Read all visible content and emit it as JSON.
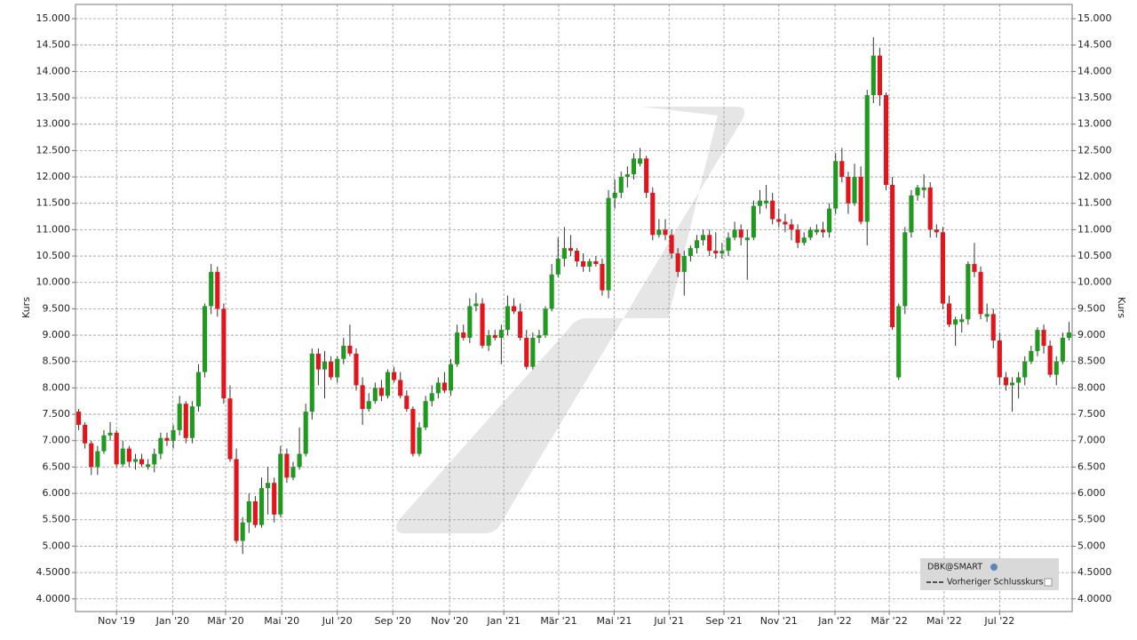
{
  "chart_data": {
    "type": "candlestick",
    "ylabel": "Kurs",
    "y2label": "Kurs",
    "up_color": "#1f9a1f",
    "down_color": "#e3141b",
    "grid": true,
    "legend": {
      "title": "DBK@SMART",
      "entries": [
        "Vorheriger Schlusskurs"
      ]
    },
    "xlim": [
      -0.5,
      157.5
    ],
    "ylim": [
      3.76,
      15.27
    ],
    "xticks": [
      {
        "value": 6.0,
        "label": "Nov '19"
      },
      {
        "value": 14.9,
        "label": "Jan '20"
      },
      {
        "value": 23.3,
        "label": "Mär '20"
      },
      {
        "value": 32.2,
        "label": "Mai '20"
      },
      {
        "value": 41.0,
        "label": "Jul '20"
      },
      {
        "value": 49.8,
        "label": "Sep '20"
      },
      {
        "value": 58.8,
        "label": "Nov '20"
      },
      {
        "value": 67.4,
        "label": "Jan '21"
      },
      {
        "value": 76.1,
        "label": "Mär '21"
      },
      {
        "value": 84.9,
        "label": "Mai '21"
      },
      {
        "value": 93.6,
        "label": "Jul '21"
      },
      {
        "value": 102.3,
        "label": "Sep '21"
      },
      {
        "value": 111.0,
        "label": "Nov '21"
      },
      {
        "value": 119.9,
        "label": "Jan '22"
      },
      {
        "value": 128.5,
        "label": "Mär '22"
      },
      {
        "value": 137.2,
        "label": "Mai '22"
      },
      {
        "value": 146.0,
        "label": "Jul '22"
      }
    ],
    "yticks": [
      {
        "value": 4,
        "label": "4.0000"
      },
      {
        "value": 4.5,
        "label": "4.5000"
      },
      {
        "value": 5,
        "label": "5.000"
      },
      {
        "value": 5.5,
        "label": "5.500"
      },
      {
        "value": 6,
        "label": "6.000"
      },
      {
        "value": 6.5,
        "label": "6.500"
      },
      {
        "value": 7,
        "label": "7.000"
      },
      {
        "value": 7.5,
        "label": "7.500"
      },
      {
        "value": 8,
        "label": "8.000"
      },
      {
        "value": 8.5,
        "label": "8.500"
      },
      {
        "value": 9,
        "label": "9.000"
      },
      {
        "value": 9.5,
        "label": "9.500"
      },
      {
        "value": 10,
        "label": "10.000"
      },
      {
        "value": 10.5,
        "label": "10.500"
      },
      {
        "value": 11,
        "label": "11.000"
      },
      {
        "value": 11.5,
        "label": "11.500"
      },
      {
        "value": 12,
        "label": "12.000"
      },
      {
        "value": 12.5,
        "label": "12.500"
      },
      {
        "value": 13,
        "label": "13.000"
      },
      {
        "value": 13.5,
        "label": "13.500"
      },
      {
        "value": 14,
        "label": "14.000"
      },
      {
        "value": 14.5,
        "label": "14.500"
      },
      {
        "value": 15,
        "label": "15.000"
      }
    ],
    "open": [
      7.55,
      7.3,
      6.95,
      6.5,
      6.8,
      7.1,
      7.15,
      6.55,
      6.85,
      6.6,
      6.65,
      6.5,
      6.55,
      6.75,
      7.05,
      7.0,
      7.2,
      7.7,
      7.05,
      7.65,
      8.3,
      9.55,
      10.2,
      9.5,
      7.8,
      6.65,
      5.1,
      5.45,
      5.85,
      5.4,
      6.1,
      6.2,
      5.6,
      6.75,
      6.3,
      6.5,
      6.75,
      7.55,
      8.65,
      8.35,
      8.5,
      8.2,
      8.55,
      8.8,
      8.65,
      8.05,
      7.6,
      7.75,
      8.0,
      7.85,
      8.3,
      8.15,
      7.85,
      7.6,
      6.75,
      7.25,
      7.75,
      7.9,
      8.1,
      7.95,
      8.45,
      9.05,
      8.95,
      9.55,
      9.6,
      8.8,
      9.0,
      8.95,
      9.1,
      9.55,
      9.45,
      8.95,
      8.4,
      8.95,
      9.0,
      9.5,
      10.15,
      10.45,
      10.65,
      10.6,
      10.4,
      10.3,
      10.4,
      10.35,
      9.85,
      11.6,
      11.7,
      12.0,
      12.05,
      12.25,
      12.35,
      11.7,
      10.9,
      11.0,
      10.9,
      10.55,
      10.2,
      10.5,
      10.65,
      10.8,
      10.9,
      10.6,
      10.55,
      10.6,
      10.85,
      11.0,
      10.8,
      10.85,
      11.45,
      11.5,
      11.55,
      11.2,
      11.15,
      11.1,
      11.0,
      10.75,
      10.85,
      10.95,
      11.0,
      10.95,
      11.4,
      12.3,
      12.0,
      11.5,
      12.0,
      11.15,
      13.55,
      14.3,
      13.55,
      11.85,
      8.2,
      9.55,
      10.95,
      11.65,
      11.75,
      11.8,
      11.0,
      10.95,
      9.6,
      9.2,
      9.25,
      9.3,
      10.35,
      10.2,
      9.35,
      9.4,
      8.9,
      8.2,
      8.05,
      8.1,
      8.2,
      8.5,
      8.7,
      9.1,
      8.8,
      8.25,
      8.5,
      8.95
    ],
    "high": [
      7.6,
      7.35,
      7.0,
      6.9,
      7.2,
      7.35,
      7.2,
      7.0,
      6.9,
      6.75,
      6.75,
      6.65,
      6.85,
      7.15,
      7.15,
      7.3,
      7.85,
      7.75,
      7.75,
      8.45,
      9.6,
      10.35,
      10.3,
      9.6,
      8.05,
      6.85,
      5.55,
      6.0,
      5.95,
      6.3,
      6.5,
      6.3,
      6.9,
      6.85,
      6.6,
      7.25,
      7.7,
      8.75,
      8.75,
      8.7,
      8.6,
      8.6,
      8.95,
      9.2,
      8.75,
      8.2,
      7.9,
      8.1,
      8.15,
      8.35,
      8.4,
      8.3,
      7.95,
      7.65,
      7.35,
      7.85,
      8.05,
      8.2,
      8.3,
      8.55,
      9.2,
      9.2,
      9.7,
      9.8,
      9.7,
      9.1,
      9.1,
      9.2,
      9.75,
      9.7,
      9.6,
      9.1,
      9.05,
      9.1,
      9.55,
      10.35,
      10.85,
      11.05,
      10.9,
      10.65,
      10.55,
      10.45,
      10.5,
      10.45,
      11.75,
      11.95,
      12.1,
      12.2,
      12.45,
      12.55,
      12.4,
      11.8,
      11.2,
      11.2,
      11.0,
      10.65,
      10.6,
      10.7,
      10.9,
      11.0,
      11.0,
      10.95,
      10.75,
      10.95,
      11.15,
      11.1,
      11.0,
      11.55,
      11.75,
      11.85,
      11.7,
      11.4,
      11.3,
      11.2,
      11.1,
      10.95,
      11.05,
      11.1,
      11.15,
      11.5,
      12.45,
      12.55,
      12.1,
      12.25,
      12.2,
      13.65,
      14.65,
      14.45,
      13.6,
      12.0,
      9.6,
      11.05,
      11.75,
      11.85,
      12.05,
      11.9,
      11.1,
      11.05,
      9.75,
      9.35,
      9.4,
      10.4,
      10.75,
      10.3,
      9.6,
      9.5,
      9.05,
      8.3,
      8.2,
      8.3,
      8.6,
      8.8,
      9.15,
      9.2,
      8.9,
      8.6,
      9.05,
      9.25
    ],
    "low": [
      7.2,
      6.85,
      6.35,
      6.35,
      6.75,
      7.0,
      6.5,
      6.5,
      6.5,
      6.45,
      6.5,
      6.45,
      6.4,
      6.65,
      6.9,
      6.85,
      7.1,
      6.95,
      6.95,
      7.55,
      8.2,
      9.4,
      9.35,
      7.7,
      6.6,
      5.05,
      4.85,
      5.25,
      5.35,
      5.35,
      5.6,
      5.45,
      5.55,
      6.2,
      6.25,
      6.45,
      6.7,
      7.4,
      8.05,
      7.8,
      8.15,
      8.1,
      8.45,
      8.6,
      7.95,
      7.3,
      7.55,
      7.7,
      7.75,
      7.8,
      8.1,
      7.8,
      7.55,
      6.7,
      6.7,
      7.2,
      7.65,
      7.8,
      7.9,
      7.85,
      8.4,
      8.9,
      8.85,
      9.45,
      8.75,
      8.7,
      8.9,
      8.45,
      9.0,
      9.4,
      8.9,
      8.35,
      8.35,
      8.85,
      8.95,
      9.45,
      10.1,
      10.3,
      10.5,
      10.3,
      10.2,
      10.2,
      10.3,
      9.75,
      9.7,
      11.4,
      11.6,
      11.8,
      11.95,
      12.2,
      11.6,
      10.8,
      10.85,
      10.8,
      10.45,
      10.1,
      9.75,
      10.4,
      10.55,
      10.7,
      10.5,
      10.45,
      10.45,
      10.5,
      10.8,
      10.7,
      10.05,
      10.8,
      11.3,
      11.4,
      11.1,
      11.05,
      10.95,
      10.8,
      10.65,
      10.7,
      10.8,
      10.9,
      10.85,
      10.85,
      11.3,
      11.9,
      11.3,
      11.45,
      11.1,
      10.7,
      13.4,
      13.35,
      11.75,
      9.1,
      8.15,
      9.4,
      10.85,
      11.55,
      11.6,
      10.85,
      10.85,
      9.5,
      9.15,
      8.8,
      9.05,
      9.2,
      10.1,
      9.3,
      9.25,
      8.75,
      8.05,
      7.95,
      7.55,
      7.8,
      8.05,
      8.45,
      8.6,
      8.65,
      8.2,
      8.05,
      8.45,
      8.9
    ],
    "close": [
      7.3,
      6.95,
      6.5,
      6.8,
      7.1,
      7.15,
      6.55,
      6.85,
      6.6,
      6.65,
      6.55,
      6.55,
      6.75,
      7.05,
      7.0,
      7.2,
      7.7,
      7.05,
      7.65,
      8.3,
      9.55,
      10.2,
      9.5,
      7.8,
      6.65,
      5.1,
      5.45,
      5.85,
      5.4,
      6.1,
      6.2,
      5.6,
      6.75,
      6.3,
      6.5,
      6.75,
      7.55,
      8.65,
      8.35,
      8.5,
      8.2,
      8.55,
      8.8,
      8.65,
      8.05,
      7.6,
      7.75,
      8.0,
      7.85,
      8.3,
      8.15,
      7.85,
      7.6,
      6.75,
      7.25,
      7.75,
      7.9,
      8.1,
      7.95,
      8.45,
      9.05,
      8.95,
      9.55,
      9.6,
      8.8,
      9.0,
      8.95,
      9.1,
      9.55,
      9.45,
      8.95,
      8.4,
      8.95,
      9.0,
      9.5,
      10.15,
      10.45,
      10.65,
      10.6,
      10.4,
      10.3,
      10.4,
      10.35,
      9.85,
      11.6,
      11.7,
      12.0,
      12.05,
      12.35,
      12.35,
      11.7,
      10.9,
      11.0,
      10.9,
      10.55,
      10.2,
      10.5,
      10.65,
      10.8,
      10.9,
      10.6,
      10.55,
      10.6,
      10.85,
      11.0,
      10.85,
      10.85,
      11.45,
      11.55,
      11.55,
      11.2,
      11.15,
      11.1,
      11.0,
      10.75,
      10.85,
      11.0,
      11.0,
      10.95,
      11.4,
      12.3,
      12.0,
      11.5,
      12.0,
      11.15,
      13.55,
      14.3,
      13.55,
      11.85,
      9.15,
      9.55,
      10.95,
      11.65,
      11.8,
      11.8,
      11.0,
      10.95,
      9.6,
      9.2,
      9.3,
      9.3,
      10.35,
      10.2,
      9.4,
      9.4,
      8.9,
      8.2,
      8.05,
      8.1,
      8.2,
      8.5,
      8.7,
      9.1,
      8.8,
      8.25,
      8.5,
      8.95,
      9.05
    ]
  }
}
